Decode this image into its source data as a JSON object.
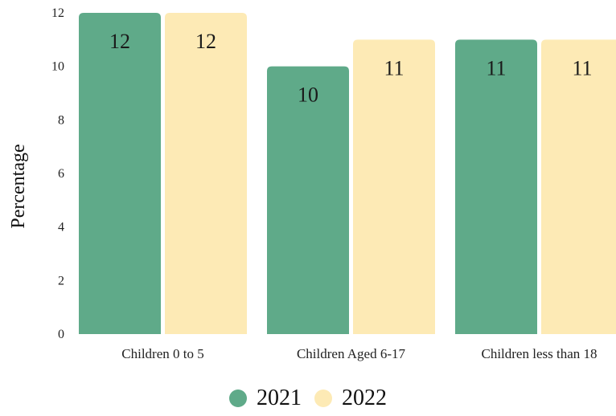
{
  "chart_data": {
    "type": "bar",
    "title": "",
    "xlabel": "",
    "ylabel": "Percentage",
    "ylim": [
      0,
      12
    ],
    "yticks": [
      0,
      2,
      4,
      6,
      8,
      10,
      12
    ],
    "categories": [
      "Children 0 to 5",
      "Children Aged 6-17",
      "Children less than 18"
    ],
    "series": [
      {
        "name": "2021",
        "color": "#5faa89",
        "values": [
          12,
          10,
          11
        ]
      },
      {
        "name": "2022",
        "color": "#fdeab5",
        "values": [
          12,
          11,
          11
        ]
      }
    ],
    "legend_position": "bottom",
    "grid": false
  }
}
